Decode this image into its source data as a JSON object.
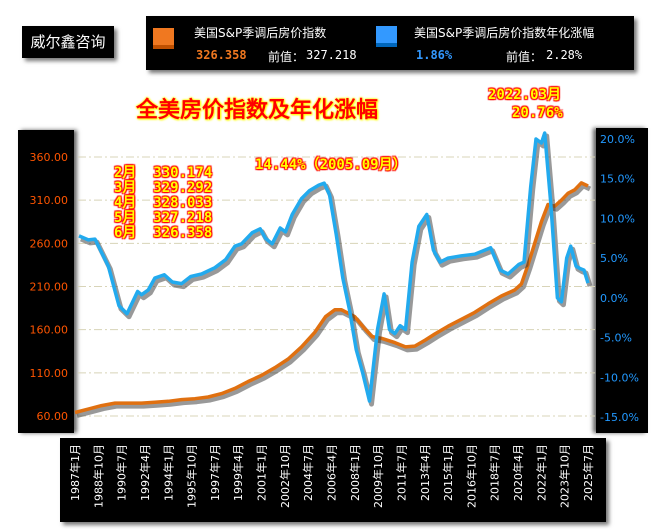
{
  "brand": "威尔鑫咨询",
  "legend": [
    {
      "name": "美国S&P季调后房价指数",
      "value": "326.358",
      "prev_label": "前值：",
      "prev": "327.218",
      "color": "#f07820"
    },
    {
      "name": "美国S&P季调后房价指数年化涨幅",
      "value": "1.86%",
      "prev_label": "前值：",
      "prev": "2.28%",
      "color": "#3399ff"
    }
  ],
  "chart_data": {
    "type": "line",
    "title": "全美房价指数及年化涨幅",
    "left_axis": {
      "ticks": [
        "60.00",
        "110.00",
        "160.00",
        "210.00",
        "260.00",
        "310.00",
        "360.00"
      ],
      "range": [
        60,
        360
      ]
    },
    "right_axis": {
      "ticks": [
        "20.0%",
        "15.0%",
        "10.0%",
        "5.0%",
        "0.0%",
        "-5.0%",
        "-10.0%",
        "-15.0%"
      ],
      "range": [
        -15,
        20
      ]
    },
    "x_ticks": [
      "1987年1月",
      "1988年10月",
      "1990年7月",
      "1992年4月",
      "1994年1月",
      "1995年10月",
      "1997年7月",
      "1999年4月",
      "2001年1月",
      "2002年10月",
      "2004年7月",
      "2006年4月",
      "2008年1月",
      "2009年10月",
      "2011年7月",
      "2013年4月",
      "2015年1月",
      "2016年10月",
      "2018年7月",
      "2020年4月",
      "2022年1月",
      "2023年10月",
      "2025年7月"
    ],
    "grid": true,
    "series": [
      {
        "name": "美国S&P季调后房价指数",
        "axis": "left",
        "color": "#e07010",
        "x": [
          1987.0,
          1988.0,
          1989.0,
          1990.0,
          1991.0,
          1992.0,
          1993.0,
          1994.0,
          1995.0,
          1996.0,
          1997.0,
          1998.0,
          1999.0,
          2000.0,
          2001.0,
          2002.0,
          2003.0,
          2004.0,
          2005.0,
          2005.8,
          2006.5,
          2007.0,
          2008.0,
          2008.7,
          2009.3,
          2010.0,
          2011.0,
          2011.8,
          2012.5,
          2013.3,
          2014.0,
          2015.0,
          2016.0,
          2017.0,
          2018.0,
          2019.0,
          2020.0,
          2020.5,
          2021.0,
          2021.5,
          2022.0,
          2022.5,
          2023.0,
          2023.5,
          2024.0,
          2024.5,
          2025.0,
          2025.5
        ],
        "y": [
          64,
          68,
          72,
          75,
          75,
          75,
          76,
          77,
          79,
          80,
          82,
          86,
          92,
          100,
          107,
          116,
          126,
          140,
          157,
          175,
          183,
          183,
          175,
          162,
          152,
          150,
          145,
          140,
          141,
          148,
          155,
          164,
          172,
          180,
          190,
          199,
          206,
          213,
          235,
          260,
          285,
          305,
          303,
          310,
          318,
          322,
          330,
          326.358
        ]
      },
      {
        "name": "美国S&P季调后房价指数年化涨幅",
        "axis": "right",
        "color": "#22aaee",
        "x": [
          1987.3,
          1988.0,
          1988.5,
          1989.5,
          1990.3,
          1990.9,
          1991.7,
          1992.0,
          1992.5,
          1993.0,
          1993.7,
          1994.3,
          1995.0,
          1995.7,
          1996.5,
          1997.5,
          1998.3,
          1999.0,
          1999.5,
          2000.3,
          2000.9,
          2001.3,
          2001.8,
          2002.4,
          2002.8,
          2003.3,
          2004.0,
          2004.6,
          2005.3,
          2005.7,
          2006.1,
          2006.6,
          2007.1,
          2007.6,
          2008.1,
          2008.6,
          2009.1,
          2009.7,
          2010.2,
          2010.6,
          2011.0,
          2011.4,
          2011.8,
          2012.3,
          2012.8,
          2013.4,
          2013.9,
          2014.4,
          2015.0,
          2016.0,
          2017.0,
          2018.2,
          2018.9,
          2019.5,
          2020.3,
          2020.7,
          2021.2,
          2021.6,
          2022.0,
          2022.25,
          2022.7,
          2023.2,
          2023.5,
          2023.9,
          2024.2,
          2024.6,
          2024.9,
          2025.2,
          2025.5
        ],
        "y": [
          7.8,
          7.3,
          7.4,
          4.0,
          -1.0,
          -2.0,
          0.8,
          0.4,
          1.0,
          2.5,
          2.9,
          2.0,
          1.8,
          2.7,
          3.0,
          3.8,
          4.8,
          6.5,
          6.8,
          8.2,
          8.7,
          7.5,
          6.8,
          8.8,
          8.3,
          10.5,
          12.5,
          13.5,
          14.2,
          14.44,
          13.0,
          8.0,
          2.5,
          -1.5,
          -6.5,
          -9.5,
          -13.0,
          -4.0,
          0.5,
          -4.0,
          -4.5,
          -3.5,
          -4.0,
          4.5,
          9.0,
          10.5,
          6.0,
          4.5,
          5.0,
          5.3,
          5.5,
          6.3,
          3.5,
          3.0,
          4.2,
          4.5,
          14.0,
          20.0,
          19.5,
          20.76,
          12.0,
          0.0,
          -0.5,
          5.0,
          6.5,
          4.0,
          3.7,
          3.5,
          1.86
        ]
      }
    ],
    "annotations": {
      "peak1": "14.44%（2005.09月）",
      "peak2_date": "2022.03月",
      "peak2_value": "20.76%",
      "recent": [
        "2月  330.174",
        "3月  329.292",
        "4月  328.033",
        "5月  327.218",
        "6月  326.358"
      ]
    }
  }
}
